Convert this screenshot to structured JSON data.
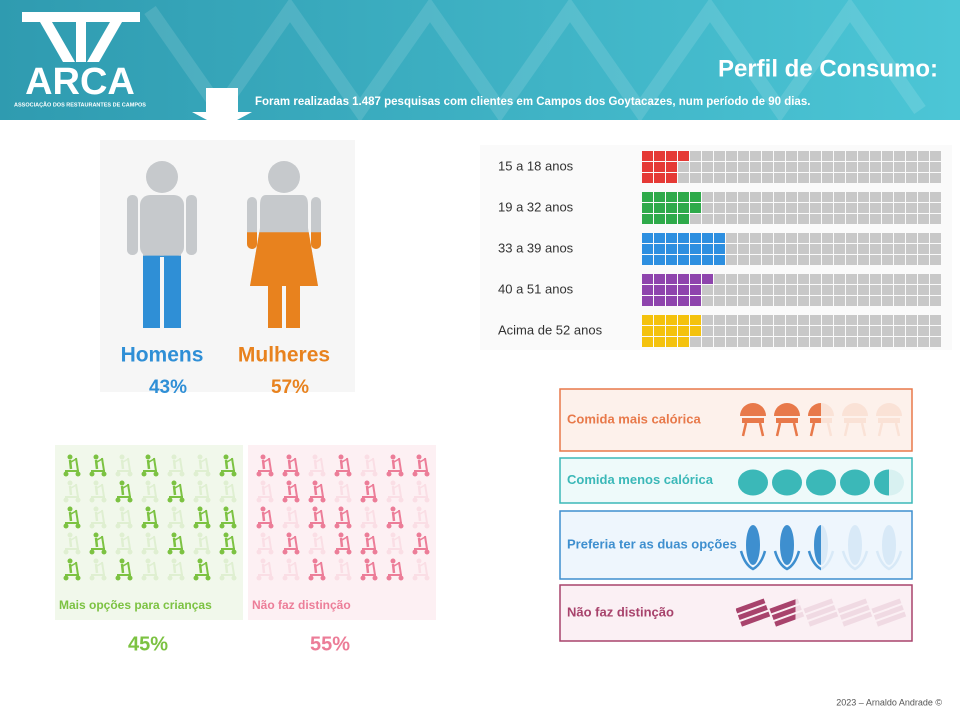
{
  "header": {
    "logo": "ARCA",
    "logo_subtitle": "ASSOCIAÇÃO DOS RESTAURANTES DE CAMPOS",
    "title": "Perfil de Consumo:",
    "subtitle": "Foram realizadas 1.487 pesquisas com clientes em Campos dos Goytacazes, num período de 90 dias."
  },
  "gender": {
    "categories": [
      "Homens",
      "Mulheres"
    ],
    "values": [
      43,
      57
    ],
    "value_labels": [
      "43%",
      "57%"
    ],
    "colors": [
      "#2f8fd6",
      "#e8821e"
    ]
  },
  "age": {
    "type": "waffle",
    "categories": [
      "15 a 18 anos",
      "19 a 32 anos",
      "33 a 39 anos",
      "40 a 51 anos",
      "Acima de 52 anos"
    ],
    "values": [
      13,
      19,
      28,
      21,
      19
    ],
    "colors": [
      "#e53935",
      "#2eaa4a",
      "#2d8fe0",
      "#8e44ad",
      "#f4c20d"
    ]
  },
  "children": {
    "categories": [
      "Mais opções para crianças",
      "Não faz distinção"
    ],
    "values": [
      45,
      55
    ],
    "value_labels": [
      "45%",
      "55%"
    ],
    "colors": [
      "#7cc242",
      "#ec7d98"
    ]
  },
  "food": {
    "categories": [
      "Comida mais calórica",
      "Comida menos calórica",
      "Preferia ter as duas opções",
      "Não faz distinção"
    ],
    "values": [
      50,
      90,
      50,
      35
    ],
    "colors": [
      "#e8794a",
      "#3bb8b8",
      "#3e8fcf",
      "#a8436c"
    ]
  },
  "footer": "2023 – Arnaldo Andrade ©"
}
